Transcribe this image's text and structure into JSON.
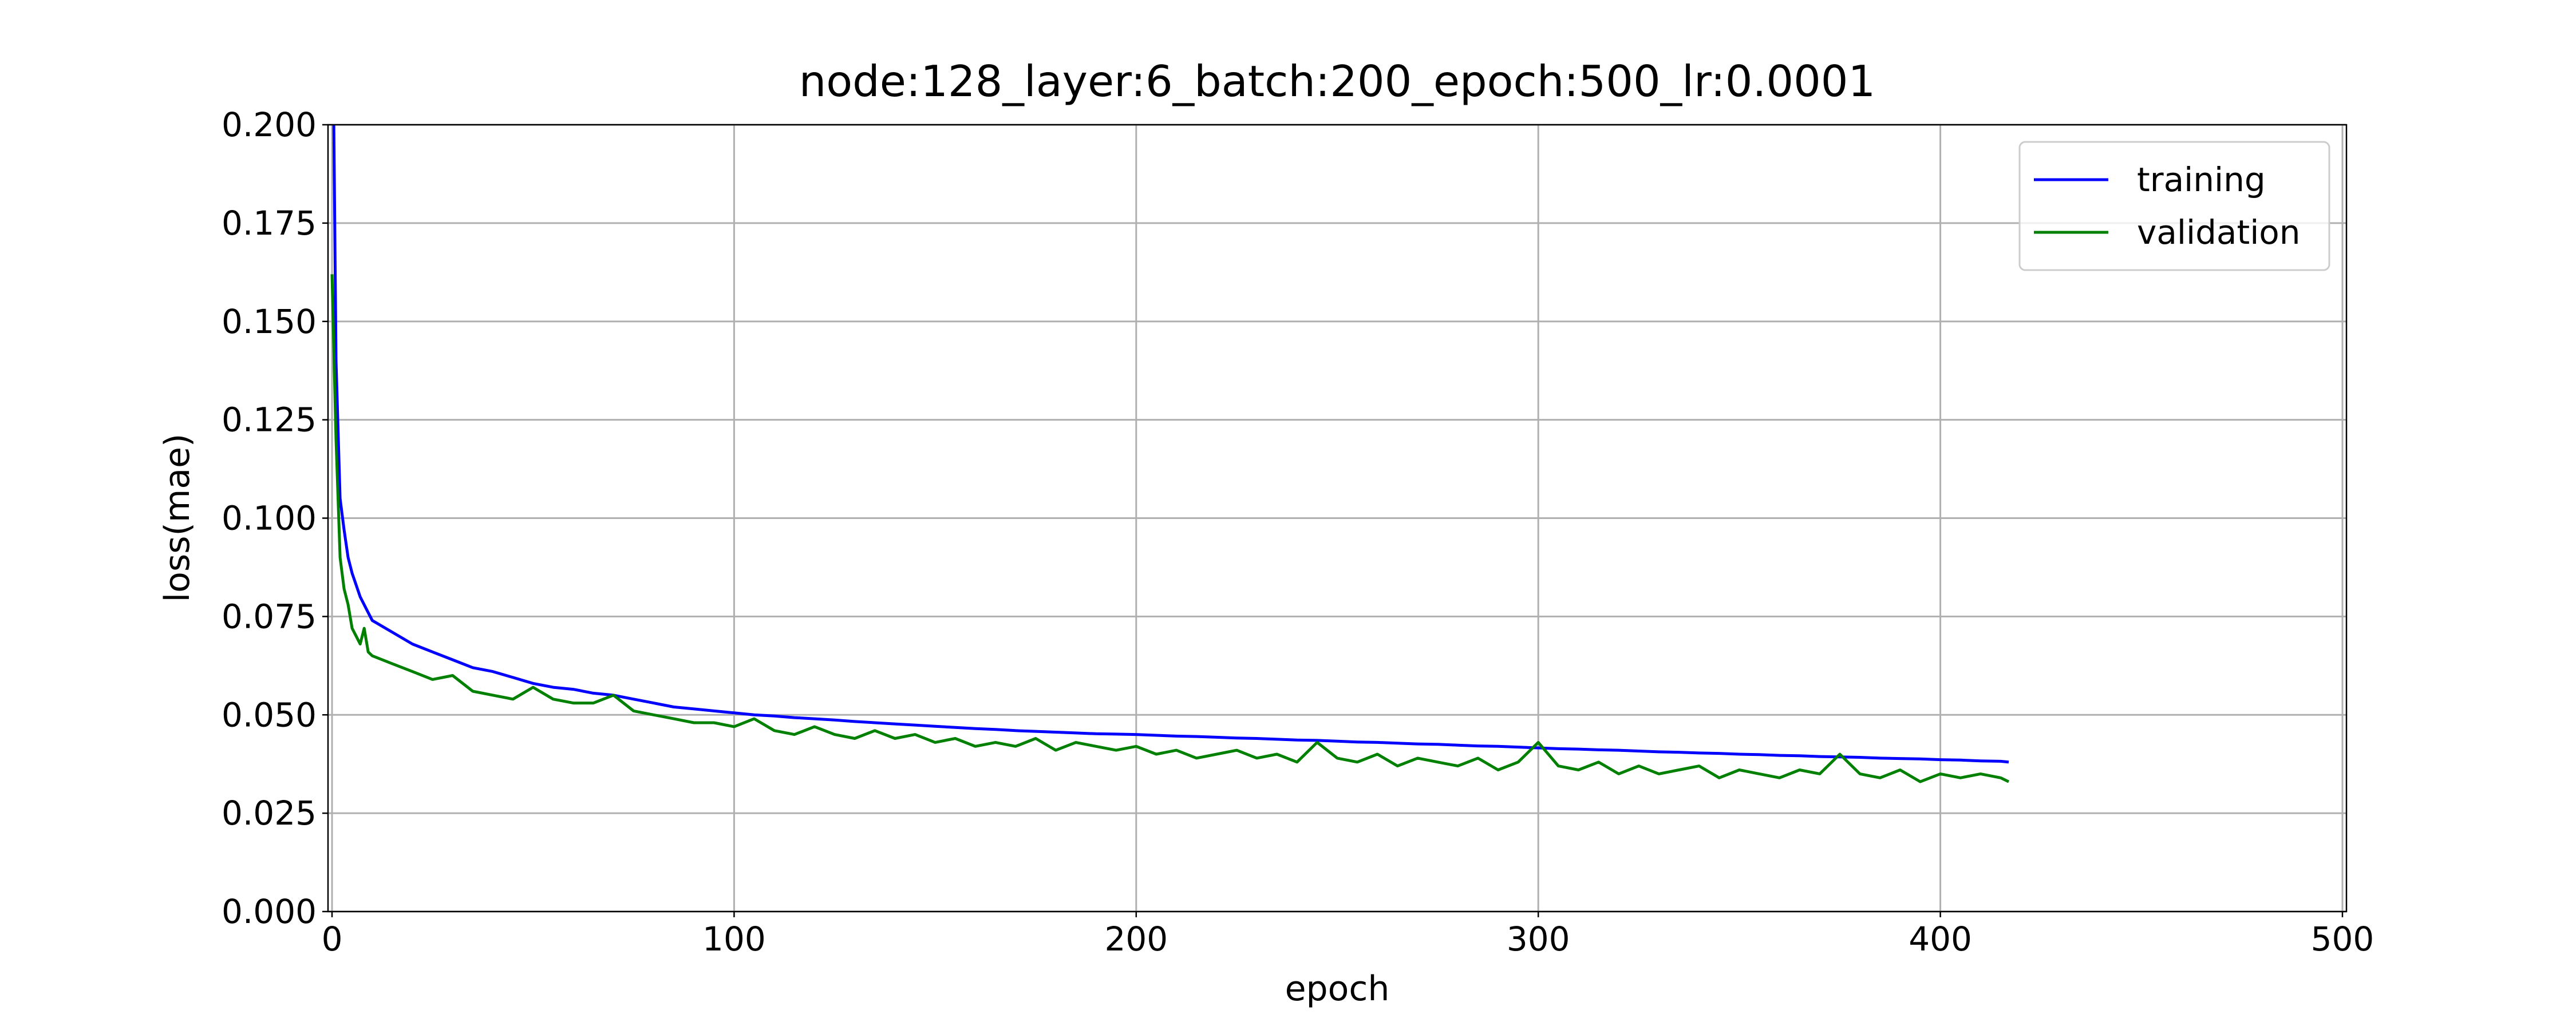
{
  "chart_data": {
    "type": "line",
    "title": "node:128_layer:6_batch:200_epoch:500_lr:0.0001",
    "x_label": "epoch",
    "y_label": "loss(mae)",
    "x": [
      0,
      1,
      2,
      3,
      4,
      5,
      6,
      7,
      8,
      9,
      10,
      15,
      20,
      25,
      30,
      35,
      40,
      45,
      50,
      55,
      60,
      65,
      70,
      75,
      80,
      85,
      90,
      95,
      100,
      105,
      110,
      115,
      120,
      125,
      130,
      135,
      140,
      145,
      150,
      155,
      160,
      165,
      170,
      175,
      180,
      185,
      190,
      195,
      200,
      205,
      210,
      215,
      220,
      225,
      230,
      235,
      240,
      245,
      250,
      255,
      260,
      265,
      270,
      275,
      280,
      285,
      290,
      295,
      300,
      305,
      310,
      315,
      320,
      325,
      330,
      335,
      340,
      345,
      350,
      355,
      360,
      365,
      370,
      375,
      380,
      385,
      390,
      395,
      400,
      405,
      410,
      415,
      417
    ],
    "series": [
      {
        "name": "training",
        "color": "#0000ff",
        "values": [
          0.25,
          0.14,
          0.105,
          0.097,
          0.09,
          0.086,
          0.083,
          0.08,
          0.078,
          0.076,
          0.074,
          0.071,
          0.068,
          0.066,
          0.064,
          0.062,
          0.061,
          0.0595,
          0.058,
          0.057,
          0.0565,
          0.0555,
          0.055,
          0.054,
          0.053,
          0.052,
          0.0515,
          0.051,
          0.0505,
          0.05,
          0.0497,
          0.0493,
          0.049,
          0.0487,
          0.0483,
          0.048,
          0.0477,
          0.0474,
          0.0471,
          0.0468,
          0.0465,
          0.0463,
          0.046,
          0.0458,
          0.0456,
          0.0454,
          0.0452,
          0.0451,
          0.045,
          0.0448,
          0.0446,
          0.0445,
          0.0443,
          0.0441,
          0.044,
          0.0438,
          0.0436,
          0.0435,
          0.0433,
          0.0431,
          0.043,
          0.0428,
          0.0426,
          0.0425,
          0.0423,
          0.0421,
          0.042,
          0.0418,
          0.0416,
          0.0414,
          0.0413,
          0.0411,
          0.041,
          0.0408,
          0.0406,
          0.0405,
          0.0403,
          0.0402,
          0.04,
          0.0399,
          0.0397,
          0.0396,
          0.0394,
          0.0393,
          0.0392,
          0.039,
          0.0389,
          0.0388,
          0.0386,
          0.0385,
          0.0383,
          0.0382,
          0.038
        ]
      },
      {
        "name": "validation",
        "color": "#008000",
        "values": [
          0.162,
          0.12,
          0.09,
          0.082,
          0.078,
          0.072,
          0.07,
          0.068,
          0.072,
          0.066,
          0.065,
          0.063,
          0.061,
          0.059,
          0.06,
          0.056,
          0.055,
          0.054,
          0.057,
          0.054,
          0.053,
          0.053,
          0.055,
          0.051,
          0.05,
          0.049,
          0.048,
          0.048,
          0.047,
          0.049,
          0.046,
          0.045,
          0.047,
          0.045,
          0.044,
          0.046,
          0.044,
          0.045,
          0.043,
          0.044,
          0.042,
          0.043,
          0.042,
          0.044,
          0.041,
          0.043,
          0.042,
          0.041,
          0.042,
          0.04,
          0.041,
          0.039,
          0.04,
          0.041,
          0.039,
          0.04,
          0.038,
          0.043,
          0.039,
          0.038,
          0.04,
          0.037,
          0.039,
          0.038,
          0.037,
          0.039,
          0.036,
          0.038,
          0.043,
          0.037,
          0.036,
          0.038,
          0.035,
          0.037,
          0.035,
          0.036,
          0.037,
          0.034,
          0.036,
          0.035,
          0.034,
          0.036,
          0.035,
          0.04,
          0.035,
          0.034,
          0.036,
          0.033,
          0.035,
          0.034,
          0.035,
          0.034,
          0.033
        ]
      }
    ],
    "xlim": [
      -1,
      501
    ],
    "ylim": [
      0,
      0.2
    ],
    "xticks": [
      0,
      100,
      200,
      300,
      400,
      500
    ],
    "yticks": [
      {
        "value": 0,
        "label": "0.000"
      },
      {
        "value": 0.025,
        "label": "0.025"
      },
      {
        "value": 0.05,
        "label": "0.050"
      },
      {
        "value": 0.075,
        "label": "0.075"
      },
      {
        "value": 0.1,
        "label": "0.100"
      },
      {
        "value": 0.125,
        "label": "0.125"
      },
      {
        "value": 0.15,
        "label": "0.150"
      },
      {
        "value": 0.175,
        "label": "0.175"
      },
      {
        "value": 0.2,
        "label": "0.200"
      }
    ],
    "grid": true,
    "legend": "upper-right"
  }
}
